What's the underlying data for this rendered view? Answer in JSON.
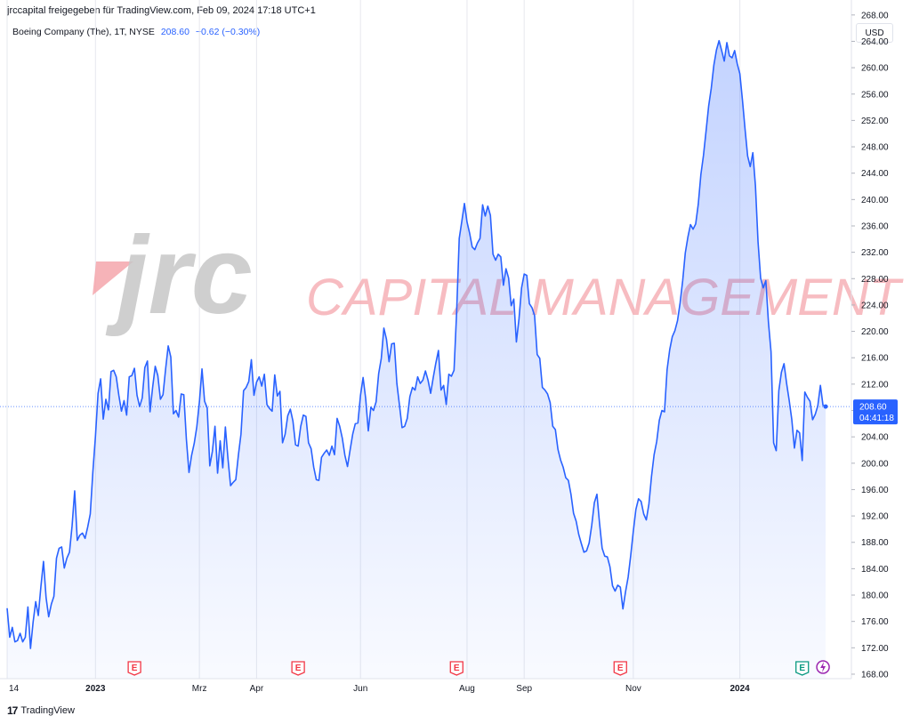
{
  "header": {
    "published_by": "jrccapital freigegeben für TradingView.com, Feb 09, 2024 17:18 UTC+1",
    "symbol_desc": "Boeing Company (The), 1T, NYSE",
    "last_value": "208.60",
    "change": "−0.62 (−0.30%)",
    "currency": "USD"
  },
  "watermark": {
    "brand": "jrc",
    "text": "CAPITAL MANAGEMENT"
  },
  "price_label": {
    "value": "208.60",
    "countdown": "04:41:18"
  },
  "footer": {
    "brand": "TradingView"
  },
  "colors": {
    "line": "#2962ff",
    "earnings_red": "#f23645",
    "earnings_green": "#089981",
    "dividend_purple": "#9c27b0"
  },
  "chart_data": {
    "type": "area",
    "y_axis_position": "right",
    "ylim": [
      166,
      270
    ],
    "y_ticks": [
      168,
      172,
      176,
      180,
      184,
      188,
      192,
      196,
      200,
      204,
      208,
      212,
      216,
      220,
      224,
      228,
      232,
      236,
      240,
      244,
      248,
      252,
      256,
      260,
      264,
      268
    ],
    "x_ticks": [
      {
        "label": "14",
        "index": 0
      },
      {
        "label": "2023",
        "index": 34
      },
      {
        "label": "Mrz",
        "index": 74
      },
      {
        "label": "Apr",
        "index": 96
      },
      {
        "label": "Jun",
        "index": 136
      },
      {
        "label": "Aug",
        "index": 177
      },
      {
        "label": "Sep",
        "index": 199
      },
      {
        "label": "Nov",
        "index": 241
      },
      {
        "label": "2024",
        "index": 282
      }
    ],
    "grid": true,
    "last_price": 208.6,
    "events": [
      {
        "label": "E",
        "kind": "earnings",
        "index": 49
      },
      {
        "label": "E",
        "kind": "earnings",
        "index": 112
      },
      {
        "label": "E",
        "kind": "earnings",
        "index": 173
      },
      {
        "label": "E",
        "kind": "earnings",
        "index": 236
      },
      {
        "label": "E",
        "kind": "earnings-positive",
        "index": 306
      },
      {
        "label": "D",
        "kind": "dividend",
        "index": 314
      }
    ],
    "values": [
      178.0,
      173.6,
      175.1,
      172.9,
      173.1,
      174.2,
      172.9,
      173.6,
      178.2,
      171.9,
      175.9,
      179.0,
      176.9,
      181.3,
      185.1,
      179.6,
      176.7,
      178.6,
      179.8,
      185.6,
      187.1,
      187.3,
      184.1,
      185.6,
      186.5,
      190.5,
      195.8,
      188.3,
      189.1,
      189.4,
      188.6,
      190.3,
      192.3,
      198.7,
      204.1,
      210.6,
      212.8,
      206.7,
      209.7,
      208.1,
      213.9,
      214.1,
      213.1,
      210.3,
      207.9,
      209.5,
      207.3,
      213.1,
      213.3,
      214.4,
      210.3,
      208.6,
      209.9,
      214.5,
      215.5,
      207.8,
      211.5,
      214.7,
      213.3,
      209.7,
      210.4,
      214.3,
      217.8,
      216.1,
      207.5,
      208.0,
      207.0,
      210.5,
      210.4,
      203.6,
      198.6,
      201.2,
      203.0,
      205.5,
      209.3,
      214.3,
      209.4,
      208.4,
      199.6,
      201.8,
      205.6,
      198.5,
      203.4,
      199.3,
      205.5,
      200.7,
      196.6,
      197.1,
      197.5,
      201.2,
      204.4,
      211.0,
      211.5,
      212.4,
      215.7,
      210.3,
      212.3,
      213.1,
      211.7,
      213.5,
      208.9,
      208.3,
      207.9,
      213.4,
      210.2,
      210.9,
      203.1,
      204.4,
      207.2,
      208.2,
      206.4,
      202.8,
      202.6,
      205.6,
      207.3,
      207.1,
      203.1,
      202.2,
      199.4,
      197.5,
      197.4,
      200.9,
      201.5,
      202.0,
      201.2,
      202.6,
      201.3,
      206.8,
      205.6,
      203.8,
      201.2,
      199.5,
      202.0,
      204.4,
      206.0,
      206.1,
      210.3,
      213.0,
      209.8,
      204.9,
      208.5,
      208.0,
      209.3,
      213.6,
      215.9,
      220.5,
      218.8,
      215.4,
      218.1,
      218.2,
      212.1,
      208.8,
      205.4,
      205.6,
      206.8,
      210.1,
      211.5,
      211.1,
      213.1,
      212.1,
      212.6,
      214.0,
      212.6,
      210.6,
      213.0,
      215.2,
      217.1,
      211.1,
      211.8,
      208.9,
      213.5,
      213.2,
      214.1,
      222.9,
      234.1,
      236.7,
      239.4,
      236.6,
      234.9,
      232.8,
      232.4,
      233.4,
      234.1,
      239.2,
      237.5,
      239.0,
      237.6,
      231.7,
      230.8,
      231.7,
      231.3,
      227.0,
      229.5,
      228.1,
      223.9,
      224.9,
      218.4,
      221.9,
      226.6,
      228.7,
      228.5,
      224.2,
      223.6,
      222.4,
      216.5,
      215.9,
      211.5,
      211.1,
      210.5,
      209.2,
      205.6,
      205.1,
      202.1,
      200.5,
      199.4,
      197.8,
      197.4,
      195.3,
      192.4,
      191.2,
      189.2,
      187.8,
      186.5,
      186.7,
      187.9,
      190.6,
      194.0,
      195.3,
      190.9,
      187.1,
      185.9,
      185.8,
      184.3,
      181.4,
      180.6,
      181.5,
      181.2,
      177.9,
      180.5,
      182.7,
      186.0,
      189.7,
      193.0,
      194.6,
      194.2,
      192.3,
      191.4,
      193.8,
      198.0,
      201.3,
      203.3,
      206.5,
      208.0,
      207.8,
      214.2,
      217.2,
      219.2,
      220.1,
      221.6,
      224.3,
      227.7,
      231.9,
      234.3,
      236.2,
      235.5,
      236.3,
      239.3,
      243.8,
      246.7,
      250.4,
      254.2,
      256.9,
      260.4,
      262.7,
      264.1,
      262.6,
      261.0,
      263.8,
      261.8,
      261.5,
      262.6,
      260.6,
      259.1,
      255.1,
      250.7,
      246.6,
      245.0,
      247.1,
      242.1,
      233.6,
      228.1,
      226.6,
      227.7,
      221.4,
      216.9,
      203.1,
      201.9,
      211.0,
      213.8,
      215.1,
      212.1,
      209.5,
      206.6,
      202.3,
      205.0,
      204.6,
      200.4,
      210.8,
      210.0,
      209.4,
      206.6,
      207.4,
      208.7,
      211.8,
      208.8,
      208.6
    ]
  }
}
